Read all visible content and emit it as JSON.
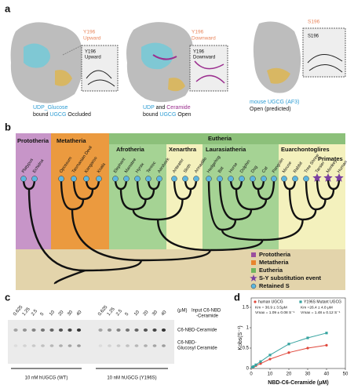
{
  "panels": {
    "a": {
      "label": "a",
      "structures": [
        {
          "callout": [
            "Y196",
            "Upward"
          ],
          "inset": [
            "Y196",
            "Upward"
          ],
          "caption": [
            [
              "UDP_Glucose"
            ],
            [
              "bound",
              "UGCG",
              "Occluded"
            ]
          ]
        },
        {
          "callout": [
            "Y196",
            "Downward"
          ],
          "inset": [
            "Y196",
            "Downward"
          ],
          "caption": [
            [
              "UDP",
              "and",
              "Ceramide"
            ],
            [
              "bound",
              "UGCG",
              "Open"
            ]
          ]
        },
        {
          "callout": [
            "S196"
          ],
          "inset": [
            "S196"
          ],
          "caption": [
            [
              "mouse UGCG (AF3)"
            ],
            [
              "Open (predicted)"
            ]
          ]
        }
      ]
    },
    "b": {
      "label": "b",
      "clades": {
        "prototheria": "Prototheria",
        "metatheria": "Metatheria",
        "eutheria": "Eutheria",
        "afrotheria": "Afrotheria",
        "xenarthra": "Xenarthra",
        "laurasiatheria": "Laurasiatheria",
        "euarchontoglires": "Euarchontoglires",
        "primates": "Primates"
      },
      "species": [
        "Platypus",
        "Echidna",
        "Opossum",
        "Tasmanian Devil",
        "Kangaroo",
        "Koala",
        "Elephant",
        "Manatee",
        "Hyrax",
        "Tenrec",
        "Aardvark",
        "Anteater",
        "Sloth",
        "Armadillo",
        "Hedgehog",
        "Bat",
        "Horse",
        "Dolphin",
        "Dog",
        "Cat",
        "Pangolin",
        "Mouse",
        "Rabbit",
        "Tree Shrew",
        "Tarsier",
        "Monkey",
        "Human"
      ],
      "legend": [
        "Prototheria",
        "Metatheria",
        "Eutheria",
        "S-Y substitution event",
        "Retained S"
      ]
    },
    "c": {
      "label": "c",
      "concentrations": [
        0.625,
        1.25,
        2.5,
        5,
        10,
        20,
        30,
        40
      ],
      "unit": "(μM)",
      "input_label": [
        "Input C6-NBD",
        "-Ceramide"
      ],
      "band_labels": [
        [
          "C6-NBD-Ceramide"
        ],
        [
          "C6-NBD-",
          "Glucosyl Ceramide"
        ]
      ],
      "lanes": [
        "10 nM hUGCG (WT)",
        "10 nM hUGCG (Y196S)"
      ]
    },
    "d": {
      "label": "d",
      "chart_data": {
        "type": "line",
        "x_label": "NBD-C6-Ceramide (μM)",
        "y_label": "Kobs(S⁻¹)",
        "x": [
          0.625,
          1.25,
          2.5,
          5,
          10,
          20,
          30,
          40
        ],
        "series": [
          {
            "name": "human UGCG",
            "color": "#e0473b",
            "values": [
              0.02,
              0.04,
              0.07,
              0.12,
              0.23,
              0.39,
              0.5,
              0.57
            ],
            "annotation": [
              "Km = 36.9 ± 3.5μM",
              "Vmax = 1.09 ± 0.08 S⁻¹"
            ]
          },
          {
            "name": "Y196S Mutant UGCG",
            "color": "#36a3a0",
            "values": [
              0.03,
              0.05,
              0.09,
              0.17,
              0.33,
              0.6,
              0.75,
              0.87
            ],
            "annotation": [
              "Km =26.4 ± 4.8 μM",
              "Vmax = 1.48 ± 0.12 S⁻¹"
            ]
          }
        ],
        "xlim": [
          0,
          50
        ],
        "xticks": [
          0,
          10,
          20,
          30,
          40,
          50
        ],
        "ylim": [
          0,
          1.5
        ],
        "yticks": [
          0,
          0.5,
          1,
          1.5
        ]
      }
    }
  }
}
